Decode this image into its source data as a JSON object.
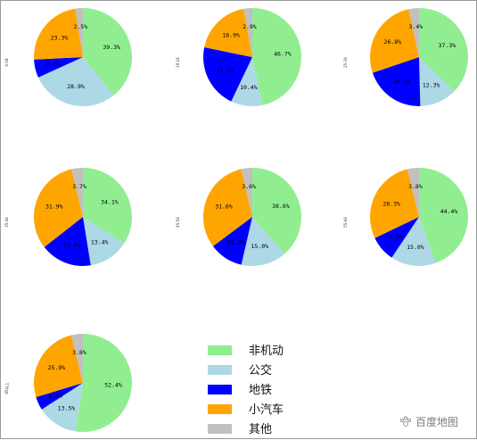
{
  "legend": [
    {
      "label": "非机动",
      "color": "#90ee90"
    },
    {
      "label": "公交",
      "color": "#add8e6"
    },
    {
      "label": "地铁",
      "color": "#0000ff"
    },
    {
      "label": "小汽车",
      "color": "#ffa500"
    },
    {
      "label": "其他",
      "color": "#c0c0c0"
    }
  ],
  "watermark": "百度地图",
  "watermark_icon": "paw-icon",
  "chart_data": [
    {
      "type": "pie",
      "side_label": "0-18",
      "categories": [
        "非机动",
        "公交",
        "地铁",
        "小汽车",
        "其他"
      ],
      "values": [
        39.3,
        28.9,
        6.0,
        23.3,
        2.5
      ],
      "labels": [
        "39.3%",
        "28.9%",
        "6.0%",
        "23.3%",
        "2.5%"
      ]
    },
    {
      "type": "pie",
      "side_label": "19-24",
      "categories": [
        "非机动",
        "公交",
        "地铁",
        "小汽车",
        "其他"
      ],
      "values": [
        46.7,
        10.4,
        21.1,
        18.9,
        2.9
      ],
      "labels": [
        "46.7%",
        "10.4%",
        "21.1%",
        "18.9%",
        "2.9%"
      ]
    },
    {
      "type": "pie",
      "side_label": "25-34",
      "categories": [
        "非机动",
        "公交",
        "地铁",
        "小汽车",
        "其他"
      ],
      "values": [
        37.3,
        12.3,
        20.2,
        26.8,
        3.4
      ],
      "labels": [
        "37.3%",
        "12.3%",
        "20.2%",
        "26.8%",
        "3.4%"
      ]
    },
    {
      "type": "pie",
      "side_label": "35-44",
      "categories": [
        "非机动",
        "公交",
        "地铁",
        "小汽车",
        "其他"
      ],
      "values": [
        34.1,
        13.4,
        17.0,
        31.9,
        3.7
      ],
      "labels": [
        "34.1%",
        "13.4%",
        "17.0%",
        "31.9%",
        "3.7%"
      ]
    },
    {
      "type": "pie",
      "side_label": "45-54",
      "categories": [
        "非机动",
        "公交",
        "地铁",
        "小汽车",
        "其他"
      ],
      "values": [
        38.6,
        15.0,
        11.2,
        31.6,
        3.6
      ],
      "labels": [
        "38.6%",
        "15.0%",
        "11.2%",
        "31.6%",
        "3.6%"
      ]
    },
    {
      "type": "pie",
      "side_label": "55-64",
      "categories": [
        "非机动",
        "公交",
        "地铁",
        "小汽车",
        "其他"
      ],
      "values": [
        44.4,
        15.0,
        8.5,
        28.3,
        3.8
      ],
      "labels": [
        "44.4%",
        "15.0%",
        "8.5%",
        "28.3%",
        "3.8%"
      ]
    },
    {
      "type": "pie",
      "side_label": "65以上",
      "categories": [
        "非机动",
        "公交",
        "地铁",
        "小汽车",
        "其他"
      ],
      "values": [
        52.4,
        13.5,
        4.4,
        25.9,
        3.8
      ],
      "labels": [
        "52.4%",
        "13.5%",
        "4.4%",
        "25.9%",
        "3.8%"
      ]
    }
  ]
}
